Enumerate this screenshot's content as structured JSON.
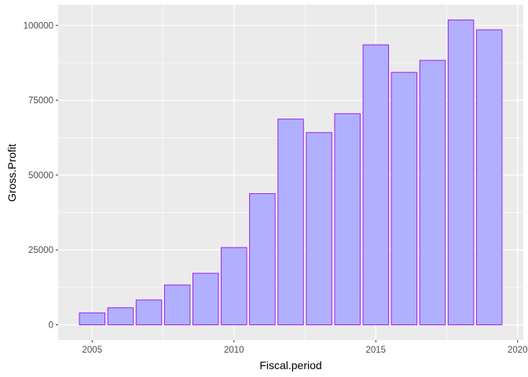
{
  "chart_data": {
    "type": "bar",
    "title": "",
    "xlabel": "Fiscal.period",
    "ylabel": "Gross.Profit",
    "x": [
      2005,
      2006,
      2007,
      2008,
      2009,
      2010,
      2011,
      2012,
      2013,
      2014,
      2015,
      2016,
      2017,
      2018,
      2019
    ],
    "values": [
      4000,
      5700,
      8300,
      13300,
      17200,
      25800,
      43800,
      68700,
      64200,
      70500,
      93500,
      84300,
      88300,
      101800,
      98500
    ],
    "xlim": [
      2003.8,
      2020.2
    ],
    "ylim": [
      -5100,
      106900
    ],
    "x_ticks": [
      2005,
      2010,
      2015,
      2020
    ],
    "x_tick_labels": [
      "2005",
      "2010",
      "2015",
      "2020"
    ],
    "y_ticks": [
      0,
      25000,
      50000,
      75000,
      100000
    ],
    "y_tick_labels": [
      "0",
      "25000",
      "50000",
      "75000",
      "100000"
    ],
    "grid": true,
    "legend": "none",
    "colors": {
      "bar_fill": "#b0b0ff",
      "bar_stroke": "#a020f0",
      "panel_background": "#ebebeb",
      "grid_line": "#ffffff",
      "tick_label": "#4d4d4d",
      "axis_title": "#000000"
    }
  }
}
